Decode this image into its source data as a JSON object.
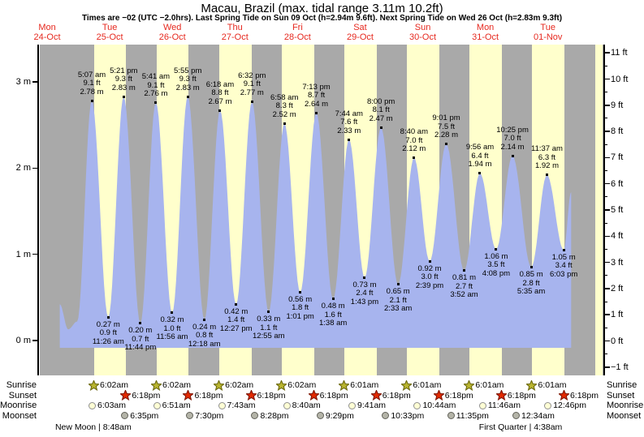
{
  "title": "Macau, Brazil (max. tidal range 3.11m 10.2ft)",
  "subtitle": "Times are −02 (UTC −2.0hrs). Last Spring Tide on Sun 09 Oct (h=2.94m 9.6ft). Next Spring Tide on Wed 26 Oct (h=2.83m 9.3ft)",
  "days": [
    {
      "name": "Mon",
      "date": "24-Oct"
    },
    {
      "name": "Tue",
      "date": "25-Oct"
    },
    {
      "name": "Wed",
      "date": "26-Oct"
    },
    {
      "name": "Thu",
      "date": "27-Oct"
    },
    {
      "name": "Fri",
      "date": "28-Oct"
    },
    {
      "name": "Sat",
      "date": "29-Oct"
    },
    {
      "name": "Sun",
      "date": "30-Oct"
    },
    {
      "name": "Mon",
      "date": "31-Oct"
    },
    {
      "name": "Tue",
      "date": "01-Nov"
    }
  ],
  "colors": {
    "night_band": "#a9a9a9",
    "day_band": "#ffffcc",
    "tide_fill": "#a7b4ee",
    "date_red": "#e6291f",
    "sunrise_star_fill": "#b9b52f",
    "sunrise_star_stroke": "#6b680f",
    "sunset_star_fill": "#e32a00",
    "sunset_star_stroke": "#7e1400",
    "moonrise_fill": "#ffffd4",
    "moonrise_border": "#909090",
    "moonset_fill": "#b4b4a8",
    "moonset_border": "#62625a"
  },
  "chart_data": {
    "type": "area",
    "title": "Macau, Brazil tide heights",
    "ylabel_left": "m",
    "ylabel_right": "ft",
    "y_left_ticks": [
      0,
      1,
      2,
      3
    ],
    "y_right_ticks": [
      -1,
      0,
      1,
      2,
      3,
      4,
      5,
      6,
      7,
      8,
      9,
      10,
      11
    ],
    "ylim_m": [
      -0.38,
      3.43
    ],
    "grid": false,
    "tide_events": [
      {
        "day": 1,
        "time": "5:07 am",
        "ft": "9.1",
        "m": "2.78",
        "type": "high"
      },
      {
        "day": 1,
        "time": "11:26 am",
        "ft": "0.9",
        "m": "0.27",
        "type": "low"
      },
      {
        "day": 1,
        "time": "5:21 pm",
        "ft": "9.3",
        "m": "2.83",
        "type": "high"
      },
      {
        "day": 1,
        "time": "11:44 pm",
        "ft": "0.7",
        "m": "0.20",
        "type": "low"
      },
      {
        "day": 2,
        "time": "5:41 am",
        "ft": "9.1",
        "m": "2.76",
        "type": "high"
      },
      {
        "day": 2,
        "time": "11:56 am",
        "ft": "1.0",
        "m": "0.32",
        "type": "low"
      },
      {
        "day": 2,
        "time": "5:55 pm",
        "ft": "9.3",
        "m": "2.83",
        "type": "high"
      },
      {
        "day": 3,
        "time": "12:18 am",
        "ft": "0.8",
        "m": "0.24",
        "type": "low"
      },
      {
        "day": 3,
        "time": "6:18 am",
        "ft": "8.8",
        "m": "2.67",
        "type": "high"
      },
      {
        "day": 3,
        "time": "12:27 pm",
        "ft": "1.4",
        "m": "0.42",
        "type": "low"
      },
      {
        "day": 3,
        "time": "6:32 pm",
        "ft": "9.1",
        "m": "2.77",
        "type": "high"
      },
      {
        "day": 4,
        "time": "12:55 am",
        "ft": "1.1",
        "m": "0.33",
        "type": "low"
      },
      {
        "day": 4,
        "time": "6:58 am",
        "ft": "8.3",
        "m": "2.52",
        "type": "high"
      },
      {
        "day": 4,
        "time": "1:01 pm",
        "ft": "1.8",
        "m": "0.56",
        "type": "low"
      },
      {
        "day": 4,
        "time": "7:13 pm",
        "ft": "8.7",
        "m": "2.64",
        "type": "high"
      },
      {
        "day": 5,
        "time": "1:38 am",
        "ft": "1.6",
        "m": "0.48",
        "type": "low"
      },
      {
        "day": 5,
        "time": "7:44 am",
        "ft": "7.6",
        "m": "2.33",
        "type": "high"
      },
      {
        "day": 5,
        "time": "1:43 pm",
        "ft": "2.4",
        "m": "0.73",
        "type": "low"
      },
      {
        "day": 5,
        "time": "8:00 pm",
        "ft": "8.1",
        "m": "2.47",
        "type": "high"
      },
      {
        "day": 6,
        "time": "2:33 am",
        "ft": "2.1",
        "m": "0.65",
        "type": "low"
      },
      {
        "day": 6,
        "time": "8:40 am",
        "ft": "7.0",
        "m": "2.12",
        "type": "high"
      },
      {
        "day": 6,
        "time": "2:39 pm",
        "ft": "3.0",
        "m": "0.92",
        "type": "low"
      },
      {
        "day": 6,
        "time": "9:01 pm",
        "ft": "7.5",
        "m": "2.28",
        "type": "high"
      },
      {
        "day": 7,
        "time": "3:52 am",
        "ft": "2.7",
        "m": "0.81",
        "type": "low"
      },
      {
        "day": 7,
        "time": "9:56 am",
        "ft": "6.4",
        "m": "1.94",
        "type": "high"
      },
      {
        "day": 7,
        "time": "4:08 pm",
        "ft": "3.5",
        "m": "1.06",
        "type": "low"
      },
      {
        "day": 7,
        "time": "10:25 pm",
        "ft": "7.0",
        "m": "2.14",
        "type": "high"
      },
      {
        "day": 8,
        "time": "5:35 am",
        "ft": "2.8",
        "m": "0.85",
        "type": "low"
      },
      {
        "day": 8,
        "time": "11:37 am",
        "ft": "6.3",
        "m": "1.92",
        "type": "high"
      },
      {
        "day": 8,
        "time": "6:03 pm",
        "ft": "3.4",
        "m": "1.05",
        "type": "low"
      }
    ],
    "curve_edge_points": [
      {
        "day": 0,
        "time": "4:50 pm",
        "m": "0.42"
      },
      {
        "day": 0,
        "time": "8:05 pm",
        "m": "0.13"
      },
      {
        "day": 0,
        "time": "11:30 pm",
        "m": "0.22"
      },
      {
        "day": 8,
        "time": "8:55 pm",
        "m": "1.72"
      }
    ]
  },
  "astro": {
    "row_labels": [
      "Sunrise",
      "Sunset",
      "Moonrise",
      "Moonset"
    ],
    "sunrise": [
      {
        "day": 1,
        "time": "6:02am"
      },
      {
        "day": 2,
        "time": "6:02am"
      },
      {
        "day": 3,
        "time": "6:02am"
      },
      {
        "day": 4,
        "time": "6:02am"
      },
      {
        "day": 5,
        "time": "6:01am"
      },
      {
        "day": 6,
        "time": "6:01am"
      },
      {
        "day": 7,
        "time": "6:01am"
      },
      {
        "day": 8,
        "time": "6:01am"
      }
    ],
    "sunset": [
      {
        "day": 1,
        "time": "6:18pm"
      },
      {
        "day": 2,
        "time": "6:18pm"
      },
      {
        "day": 3,
        "time": "6:18pm"
      },
      {
        "day": 4,
        "time": "6:18pm"
      },
      {
        "day": 5,
        "time": "6:18pm"
      },
      {
        "day": 6,
        "time": "6:18pm"
      },
      {
        "day": 7,
        "time": "6:18pm"
      },
      {
        "day": 8,
        "time": "6:18pm"
      }
    ],
    "moonrise": [
      {
        "day": 1,
        "time": "6:03am"
      },
      {
        "day": 2,
        "time": "6:51am"
      },
      {
        "day": 3,
        "time": "7:43am"
      },
      {
        "day": 4,
        "time": "8:40am"
      },
      {
        "day": 5,
        "time": "9:41am"
      },
      {
        "day": 6,
        "time": "10:44am"
      },
      {
        "day": 7,
        "time": "11:46am"
      },
      {
        "day": 8,
        "time": "12:46pm"
      }
    ],
    "moonset": [
      {
        "day": 1,
        "time": "6:35pm"
      },
      {
        "day": 2,
        "time": "7:30pm"
      },
      {
        "day": 3,
        "time": "8:28pm"
      },
      {
        "day": 4,
        "time": "9:29pm"
      },
      {
        "day": 5,
        "time": "10:33pm"
      },
      {
        "day": 6,
        "time": "11:35pm"
      },
      {
        "day": 8,
        "time": "12:34am"
      }
    ],
    "moon_phases": [
      {
        "day": 1,
        "time": "8:48am",
        "label": "New Moon | 8:48am"
      },
      {
        "day": 8,
        "time": "4:38am",
        "label": "First Quarter | 4:38am"
      }
    ]
  }
}
